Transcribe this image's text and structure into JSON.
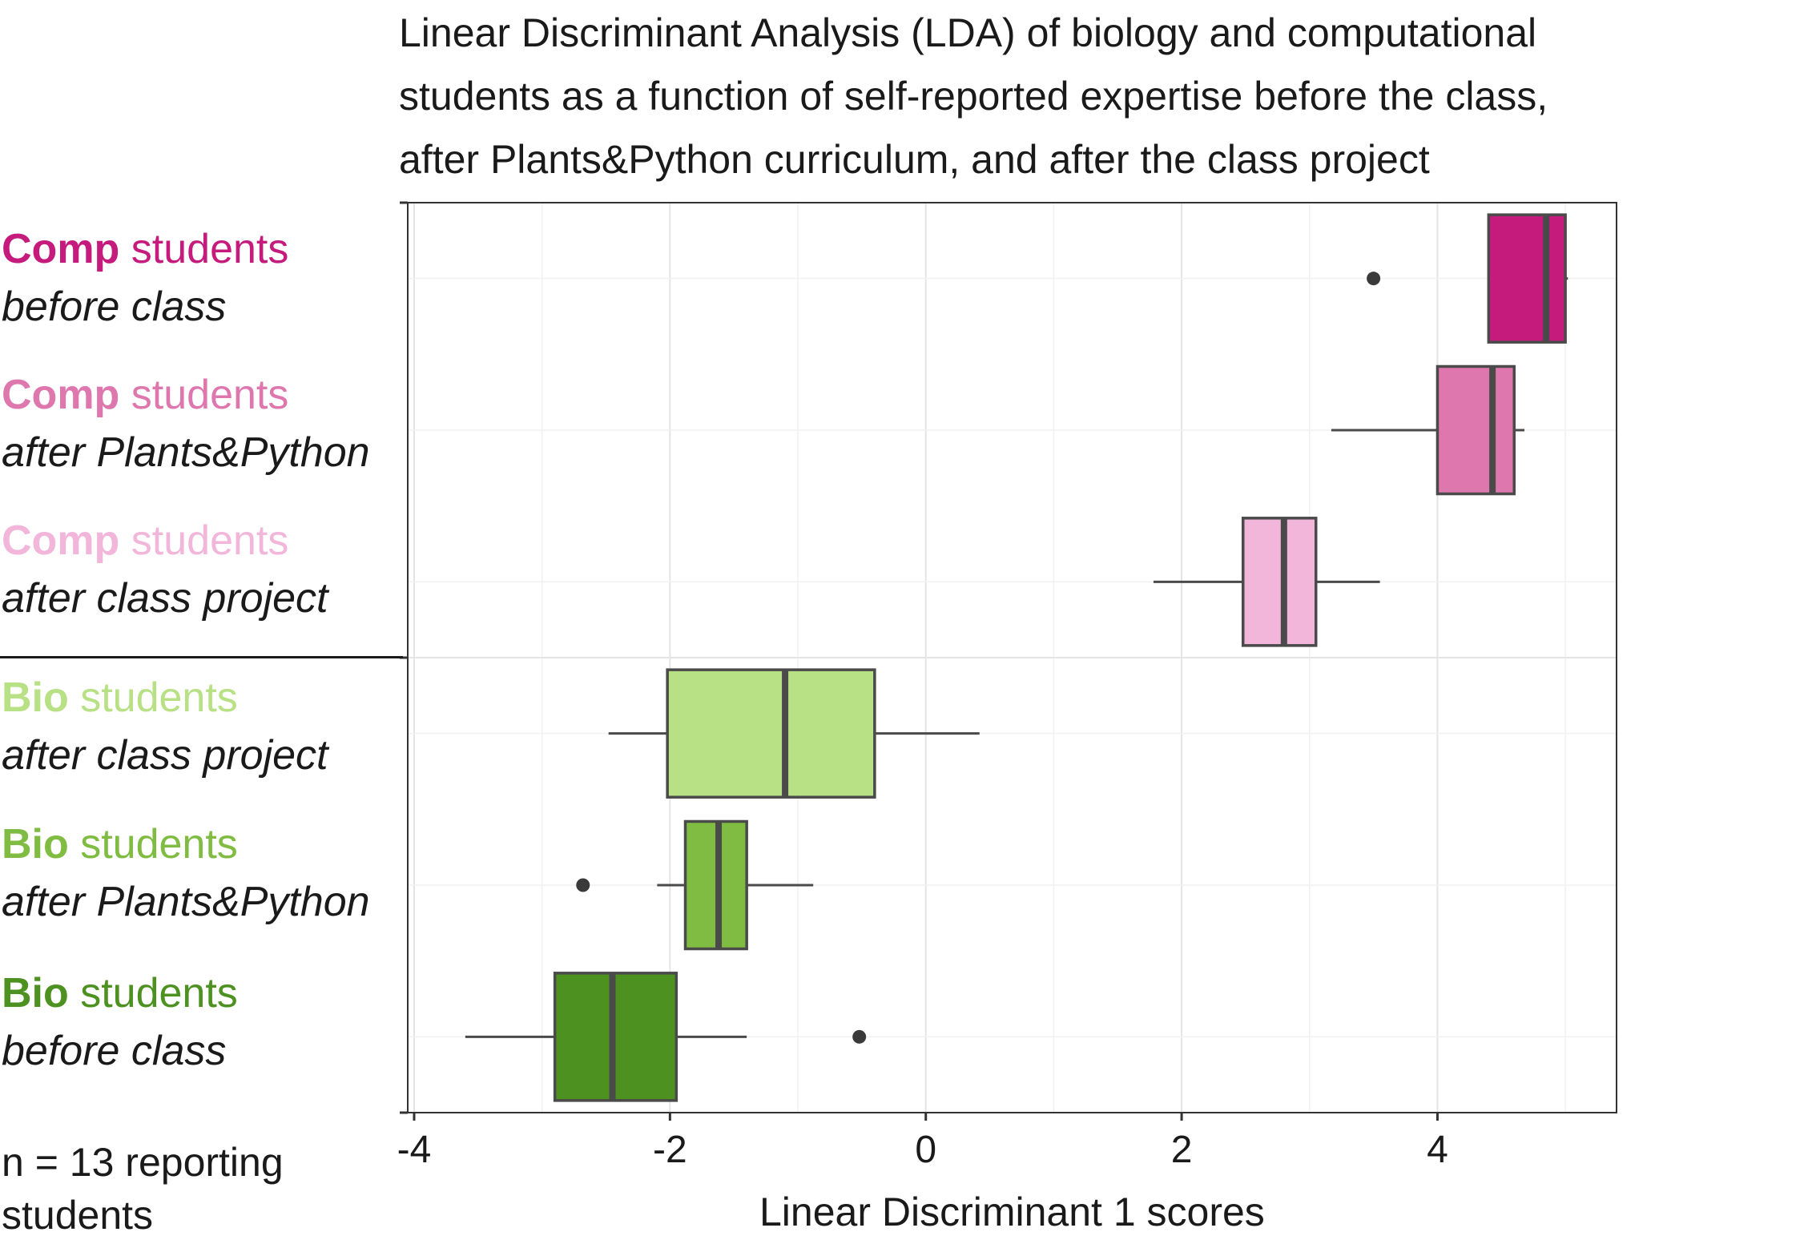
{
  "chart_data": {
    "type": "box",
    "title_lines": [
      "Linear Discriminant Analysis (LDA) of biology and computational",
      "students as a function of self-reported expertise before the class,",
      "after Plants&Python curriculum, and after the class project"
    ],
    "xlabel": "Linear Discriminant 1 scores",
    "ylabel": "",
    "xlim": [
      -4.05,
      5.4
    ],
    "xticks": [
      -4,
      -2,
      0,
      2,
      4
    ],
    "xtick_labels": [
      "-4",
      "-2",
      "0",
      "2",
      "4"
    ],
    "grid": true,
    "note_lines": [
      "n = 13 reporting",
      "students"
    ],
    "series": [
      {
        "group": "Comp",
        "word": "students",
        "condition": "before class",
        "color": "#c51b7d",
        "whisker_low": 4.4,
        "q1": 4.4,
        "median": 4.85,
        "q3": 5.0,
        "whisker_high": 5.02,
        "outliers": [
          3.5
        ]
      },
      {
        "group": "Comp",
        "word": "students",
        "condition": "after Plants&Python",
        "color": "#de77ae",
        "whisker_low": 3.17,
        "q1": 4.0,
        "median": 4.43,
        "q3": 4.6,
        "whisker_high": 4.68,
        "outliers": []
      },
      {
        "group": "Comp",
        "word": "students",
        "condition": "after class project",
        "color": "#f1b6da",
        "whisker_low": 1.78,
        "q1": 2.48,
        "median": 2.8,
        "q3": 3.05,
        "whisker_high": 3.55,
        "outliers": []
      },
      {
        "group": "Bio",
        "word": "students",
        "condition": "after class project",
        "color": "#b8e186",
        "whisker_low": -2.48,
        "q1": -2.02,
        "median": -1.1,
        "q3": -0.4,
        "whisker_high": 0.42,
        "outliers": []
      },
      {
        "group": "Bio",
        "word": "students",
        "condition": "after Plants&Python",
        "color": "#7fbc41",
        "whisker_low": -2.1,
        "q1": -1.88,
        "median": -1.62,
        "q3": -1.4,
        "whisker_high": -0.88,
        "outliers": [
          -2.68
        ]
      },
      {
        "group": "Bio",
        "word": "students",
        "condition": "before class",
        "color": "#4d9221",
        "whisker_low": -3.6,
        "q1": -2.9,
        "median": -2.45,
        "q3": -1.95,
        "whisker_high": -1.4,
        "outliers": [
          -0.52
        ]
      }
    ]
  }
}
